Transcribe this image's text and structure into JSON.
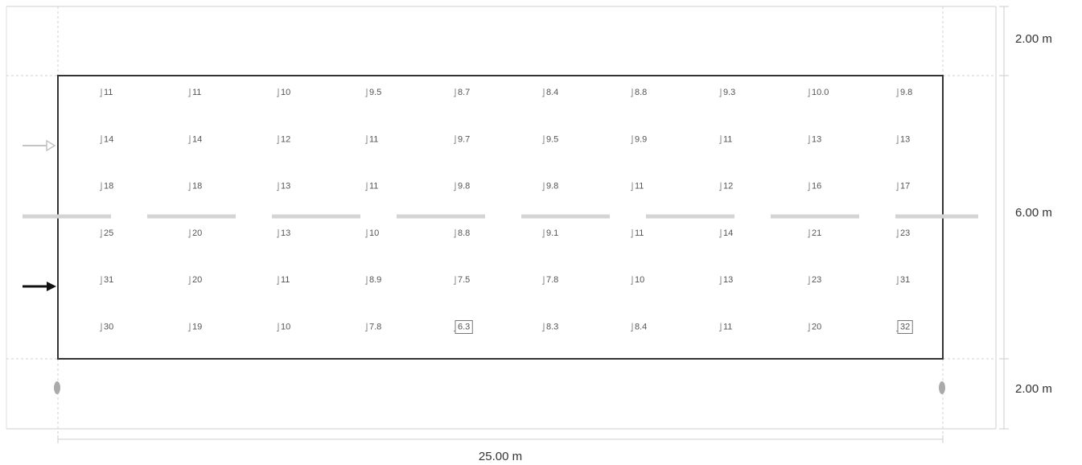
{
  "dimensions": {
    "top_band": "2.00 m",
    "road_width": "6.00 m",
    "bottom_band": "2.00 m",
    "length": "25.00 m"
  },
  "grid": {
    "rows": [
      [
        "11",
        "11",
        "10",
        "9.5",
        "8.7",
        "8.4",
        "8.8",
        "9.3",
        "10.0",
        "9.8"
      ],
      [
        "14",
        "14",
        "12",
        "11",
        "9.7",
        "9.5",
        "9.9",
        "11",
        "13",
        "13"
      ],
      [
        "18",
        "18",
        "13",
        "11",
        "9.8",
        "9.8",
        "11",
        "12",
        "16",
        "17"
      ],
      [
        "25",
        "20",
        "13",
        "10",
        "8.8",
        "9.1",
        "11",
        "14",
        "21",
        "23"
      ],
      [
        "31",
        "20",
        "11",
        "8.9",
        "7.5",
        "7.8",
        "10",
        "13",
        "23",
        "31"
      ],
      [
        "30",
        "19",
        "10",
        "7.8",
        "6.3",
        "8.3",
        "8.4",
        "11",
        "20",
        "32"
      ]
    ],
    "boxed": [
      [
        5,
        4
      ],
      [
        5,
        9
      ]
    ]
  }
}
